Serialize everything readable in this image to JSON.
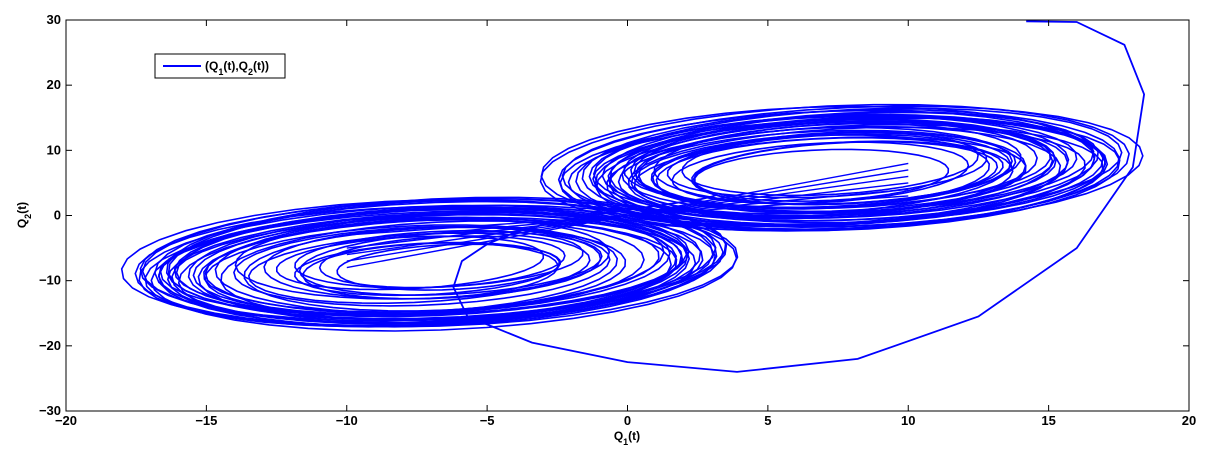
{
  "chart_data": {
    "type": "line",
    "title": "",
    "xlabel": "Q_1(t)",
    "ylabel": "Q_2(t)",
    "xlim": [
      -20,
      20
    ],
    "ylim": [
      -30,
      30
    ],
    "xticks": [
      -20,
      -15,
      -10,
      -5,
      0,
      5,
      10,
      15,
      20
    ],
    "yticks": [
      -30,
      -20,
      -10,
      0,
      10,
      20,
      30
    ],
    "xtick_labels": [
      "−20",
      "−15",
      "−10",
      "−5",
      "0",
      "5",
      "10",
      "15",
      "20"
    ],
    "ytick_labels": [
      "−30",
      "−20",
      "−10",
      "0",
      "10",
      "20",
      "30"
    ],
    "grid": false,
    "legend": {
      "position": "top-left",
      "entries": [
        "(Q_1(t),Q_2(t))"
      ]
    },
    "series": [
      {
        "name": "(Q_1(t),Q_2(t))",
        "color": "#0000ff",
        "description": "chaotic two-lobe butterfly trajectory",
        "x": [
          14.2,
          16.0,
          17.7,
          18.4,
          18.0,
          16.0,
          12.5,
          8.2,
          3.9,
          0.0,
          -3.4,
          -5.7,
          -6.2,
          -5.9,
          -5.0,
          -4.0,
          -2.8,
          -1.6,
          -0.6,
          0.4,
          1.2,
          2.0,
          2.6,
          3.0,
          3.2
        ],
        "y": [
          29.8,
          29.7,
          26.2,
          18.6,
          7.4,
          -5.0,
          -15.5,
          -22.0,
          -24.0,
          -22.5,
          -19.5,
          -15.5,
          -11.0,
          -7.0,
          -4.4,
          -2.6,
          -1.2,
          -0.2,
          0.5,
          1.1,
          1.6,
          2.1,
          2.5,
          2.9,
          3.2
        ]
      }
    ]
  }
}
